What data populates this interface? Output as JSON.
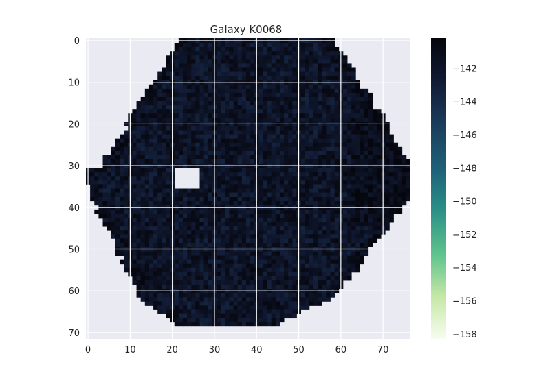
{
  "chart_data": {
    "type": "heatmap",
    "title": "Galaxy K0068",
    "xlabel": "",
    "ylabel": "",
    "xlim": [
      -0.5,
      76.5
    ],
    "ylim": [
      71.5,
      -0.5
    ],
    "x_ticks": [
      0,
      10,
      20,
      30,
      40,
      50,
      60,
      70
    ],
    "y_ticks": [
      0,
      10,
      20,
      30,
      40,
      50,
      60,
      70
    ],
    "grid": true,
    "colormap": "dark-navy-to-pale-green (reversed)",
    "colorbar": {
      "range": [
        -158.3,
        -140.2
      ],
      "ticks": [
        -142,
        -144,
        -146,
        -148,
        -150,
        -152,
        -154,
        -156,
        -158
      ]
    },
    "data_summary": {
      "image_size": [
        77,
        72
      ],
      "shape": "roughly hexagonal galaxy region, outside is masked (no data)",
      "typical_value_range": [
        -143.5,
        -140.5
      ],
      "masked_hole": {
        "x_range": [
          21,
          27
        ],
        "y_range": [
          31,
          36
        ]
      }
    }
  },
  "colors": {
    "plot_background": "#eaeaf2",
    "grid": "#ffffff",
    "colormap_stops": [
      "#f7fcf0",
      "#c5e8a6",
      "#5fc38d",
      "#2a8f87",
      "#1e5f78",
      "#1b3b5a",
      "#111a33",
      "#06060d"
    ]
  }
}
